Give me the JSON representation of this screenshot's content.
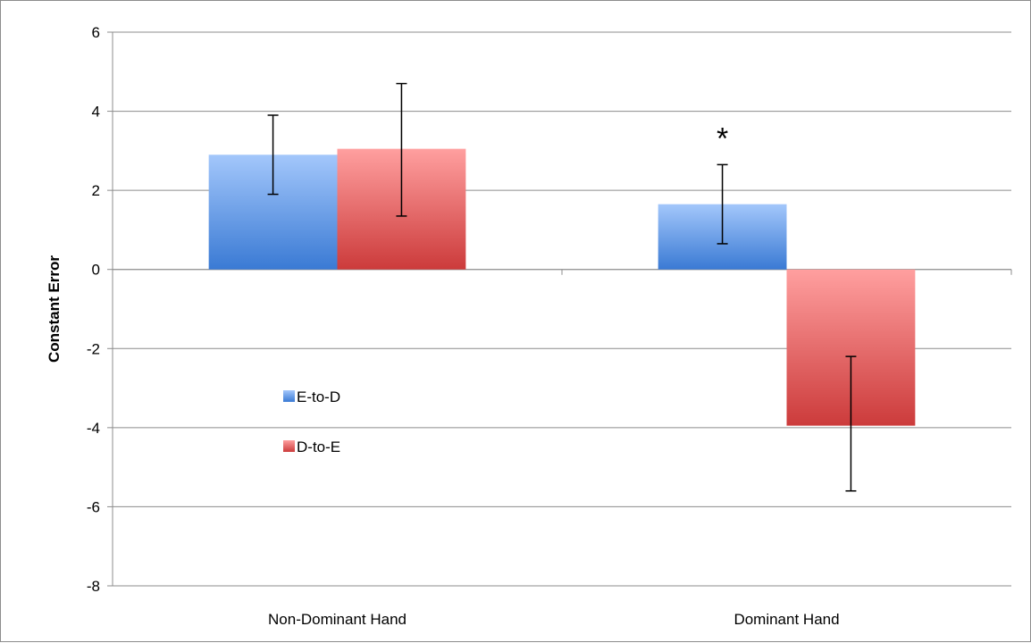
{
  "chart_data": {
    "type": "bar",
    "title": "",
    "xlabel": "",
    "ylabel": "Constant Error",
    "ylim": [
      -8,
      6
    ],
    "yticks": [
      6,
      4,
      2,
      0,
      -2,
      -4,
      -6,
      -8
    ],
    "yticks_labels": [
      "6",
      "4",
      "2",
      "0",
      "-2",
      "-4",
      "-6",
      "-8"
    ],
    "grid": true,
    "legend_position": "center-left",
    "categories": [
      "Non-Dominant Hand",
      "Dominant Hand"
    ],
    "series": [
      {
        "name": "E-to-D",
        "values": [
          2.9,
          1.65
        ],
        "error_low": [
          1.9,
          0.65
        ],
        "error_high": [
          3.9,
          2.65
        ],
        "color_top": "#a3c7fb",
        "color_bottom": "#3a7ad4"
      },
      {
        "name": "D-to-E",
        "values": [
          3.05,
          -3.95
        ],
        "error_low": [
          1.35,
          -5.6
        ],
        "error_high": [
          4.7,
          -2.2
        ],
        "color_top": "#ff9f9f",
        "color_bottom": "#cc3b3b"
      }
    ],
    "annotations": [
      {
        "text": "*",
        "category": "Dominant Hand",
        "series": "E-to-D",
        "y": 3.5
      }
    ]
  }
}
